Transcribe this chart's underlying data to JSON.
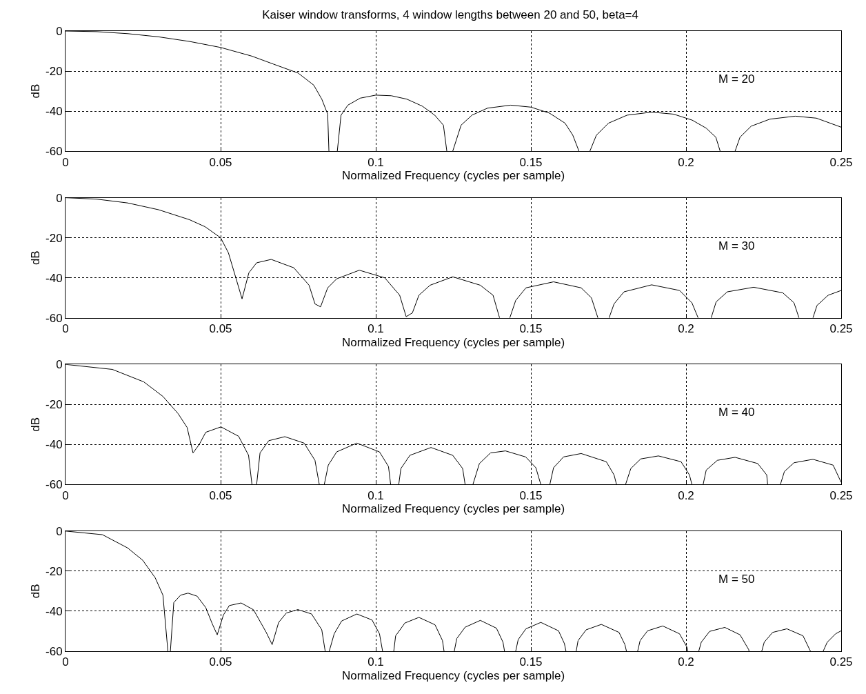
{
  "chart_data": [
    {
      "type": "line",
      "title": "Kaiser window transforms, 4 window lengths between 20 and 50, beta=4",
      "xlabel": "Normalized Frequency (cycles per sample)",
      "ylabel": "dB",
      "xlim": [
        0,
        0.25
      ],
      "xticks": [
        0,
        0.05,
        0.1,
        0.15,
        0.2,
        0.25
      ],
      "ylim": [
        -60,
        0
      ],
      "yticks": [
        -60,
        -40,
        -20,
        0
      ],
      "grid": true,
      "annotations": [
        "M = 20"
      ],
      "series": [
        {
          "color": "#000000",
          "x": [
            0,
            0.01,
            0.02,
            0.03,
            0.04,
            0.05,
            0.06,
            0.067,
            0.075,
            0.08,
            0.0826,
            0.0845,
            0.0849,
            0.086,
            0.0876,
            0.0888,
            0.091,
            0.095,
            0.1,
            0.105,
            0.11,
            0.115,
            0.119,
            0.1218,
            0.1229,
            0.124,
            0.1248,
            0.1275,
            0.131,
            0.136,
            0.1435,
            0.15,
            0.156,
            0.161,
            0.1635,
            0.1655,
            0.167,
            0.169,
            0.1711,
            0.175,
            0.181,
            0.1889,
            0.196,
            0.202,
            0.2065,
            0.2096,
            0.211,
            0.213,
            0.2158,
            0.2174,
            0.221,
            0.227,
            0.2352,
            0.242,
            0.25
          ],
          "values": [
            0,
            -0.3,
            -1.3,
            -2.9,
            -5.2,
            -8.2,
            -12.5,
            -16.5,
            -21,
            -27,
            -34,
            -41.5,
            -60,
            null,
            -60,
            -42,
            -37,
            -33.5,
            -32,
            -32.3,
            -34,
            -37.5,
            -42,
            -47,
            -60,
            null,
            -60,
            -47,
            -42,
            -38.5,
            -37,
            -38,
            -41,
            -46,
            -52,
            -60,
            null,
            -60,
            -52,
            -46,
            -42,
            -40.5,
            -41.5,
            -44.5,
            -48.5,
            -53,
            -60,
            null,
            -60,
            -53,
            -47.5,
            -44,
            -42.5,
            -43.5,
            -48
          ]
        }
      ]
    },
    {
      "type": "line",
      "xlabel": "Normalized Frequency (cycles per sample)",
      "ylabel": "dB",
      "xlim": [
        0,
        0.25
      ],
      "xticks": [
        0,
        0.05,
        0.1,
        0.15,
        0.2,
        0.25
      ],
      "ylim": [
        -60,
        0
      ],
      "yticks": [
        -60,
        -40,
        -20,
        0
      ],
      "grid": true,
      "annotations": [
        "M = 30"
      ],
      "series": [
        {
          "color": "#000000",
          "x": [
            0,
            0.01,
            0.02,
            0.03,
            0.04,
            0.045,
            0.05,
            0.0525,
            0.0549,
            0.0569,
            0.0591,
            0.0616,
            0.0663,
            0.0736,
            0.0785,
            0.0804,
            0.0822,
            0.0845,
            0.0874,
            0.0947,
            0.1029,
            0.1077,
            0.1098,
            0.1118,
            0.1139,
            0.1175,
            0.1248,
            0.1337,
            0.1378,
            0.1399,
            0.1415,
            0.1432,
            0.1451,
            0.1484,
            0.1573,
            0.1662,
            0.1695,
            0.1716,
            0.173,
            0.1752,
            0.1768,
            0.18,
            0.1889,
            0.1979,
            0.2019,
            0.2039,
            0.206,
            0.2081,
            0.2097,
            0.2133,
            0.2218,
            0.2312,
            0.2348,
            0.2364,
            0.238,
            0.2409,
            0.2422,
            0.2458,
            0.25
          ],
          "values": [
            0,
            -0.7,
            -2.6,
            -6,
            -11,
            -14.5,
            -20,
            -27.5,
            -40,
            -50.5,
            -37.5,
            -32.5,
            -30.8,
            -35,
            -43.7,
            -53,
            -54.5,
            -45,
            -40.5,
            -36.2,
            -40,
            -48.7,
            -59.4,
            -57.5,
            -48.7,
            -43.7,
            -39.5,
            -43.7,
            -48.7,
            -60,
            null,
            -60,
            -51.3,
            -45,
            -42,
            -45,
            -50,
            -60,
            null,
            -60,
            -53,
            -47,
            -43.5,
            -46.3,
            -52.5,
            -60,
            null,
            -60,
            -52,
            -47,
            -44.7,
            -47.5,
            -52.5,
            -60,
            null,
            -60,
            -53.8,
            -48.7,
            -46.3
          ]
        }
      ]
    },
    {
      "type": "line",
      "xlabel": "Normalized Frequency (cycles per sample)",
      "ylabel": "dB",
      "xlim": [
        0,
        0.25
      ],
      "xticks": [
        0,
        0.05,
        0.1,
        0.15,
        0.2,
        0.25
      ],
      "ylim": [
        -60,
        0
      ],
      "yticks": [
        -60,
        -40,
        -20,
        0
      ],
      "grid": true,
      "annotations": [
        "M = 40"
      ],
      "series": [
        {
          "color": "#000000",
          "x": [
            0,
            0.0151,
            0.0252,
            0.0314,
            0.0363,
            0.0392,
            0.0411,
            0.0431,
            0.0452,
            0.0501,
            0.0558,
            0.059,
            0.0601,
            0.061,
            0.0616,
            0.0627,
            0.0655,
            0.0707,
            0.0769,
            0.0804,
            0.0818,
            0.0826,
            0.0834,
            0.0847,
            0.0874,
            0.0939,
            0.1012,
            0.1041,
            0.1048,
            0.106,
            0.1074,
            0.1081,
            0.111,
            0.1178,
            0.1248,
            0.128,
            0.1288,
            0.13,
            0.1313,
            0.1334,
            0.137,
            0.1418,
            0.1483,
            0.1516,
            0.1532,
            0.155,
            0.1561,
            0.1573,
            0.1605,
            0.1662,
            0.1743,
            0.1768,
            0.1776,
            0.179,
            0.1805,
            0.1822,
            0.1854,
            0.1911,
            0.1984,
            0.2011,
            0.2019,
            0.204,
            0.2055,
            0.2065,
            0.2101,
            0.2158,
            0.2231,
            0.226,
            0.2263,
            0.228,
            0.2304,
            0.2317,
            0.2348,
            0.2409,
            0.2474,
            0.25
          ],
          "values": [
            0,
            -2.5,
            -8.7,
            -16,
            -24.6,
            -31.5,
            -44.2,
            -40,
            -33.9,
            -31.2,
            -35.9,
            -45.4,
            -60,
            null,
            -60,
            -44.2,
            -38.1,
            -36.1,
            -39.3,
            -47.9,
            -60,
            null,
            -60,
            -50.3,
            -43.7,
            -39.3,
            -43.7,
            -51,
            -60,
            null,
            -60,
            -52,
            -45.4,
            -41.5,
            -45.4,
            -52,
            -60,
            null,
            -60,
            -49.5,
            -44.2,
            -43.2,
            -46.2,
            -51.6,
            -60,
            null,
            -60,
            -51.6,
            -46.2,
            -44.5,
            -48.6,
            -55.2,
            -60,
            null,
            -60,
            -52,
            -47.2,
            -45.7,
            -48.6,
            -55.2,
            -60,
            null,
            -60,
            -52.8,
            -47.9,
            -46.4,
            -49.5,
            -55.2,
            -60,
            null,
            -60,
            -53.5,
            -49.1,
            -47.4,
            -50.3,
            -58.9
          ]
        }
      ]
    },
    {
      "type": "line",
      "xlabel": "Normalized Frequency (cycles per sample)",
      "ylabel": "dB",
      "xlim": [
        0,
        0.25
      ],
      "xticks": [
        0,
        0.05,
        0.1,
        0.15,
        0.2,
        0.25
      ],
      "ylim": [
        -60,
        0
      ],
      "yticks": [
        -60,
        -40,
        -20,
        0
      ],
      "grid": true,
      "annotations": [
        "M = 50"
      ],
      "series": [
        {
          "color": "#000000",
          "x": [
            0,
            0.0119,
            0.02,
            0.0249,
            0.0289,
            0.0314,
            0.033,
            0.0334,
            0.0338,
            0.0349,
            0.0371,
            0.0395,
            0.0424,
            0.0452,
            0.0473,
            0.0489,
            0.0509,
            0.0528,
            0.0566,
            0.0606,
            0.0647,
            0.0666,
            0.0687,
            0.0712,
            0.0749,
            0.0793,
            0.0826,
            0.0837,
            0.0843,
            0.085,
            0.0866,
            0.089,
            0.0939,
            0.0988,
            0.1012,
            0.1022,
            0.104,
            0.1058,
            0.1064,
            0.1094,
            0.1139,
            0.1191,
            0.1215,
            0.122,
            0.1235,
            0.1253,
            0.1261,
            0.1288,
            0.1337,
            0.1389,
            0.141,
            0.1415,
            0.143,
            0.1451,
            0.1459,
            0.1484,
            0.1532,
            0.1589,
            0.1608,
            0.1613,
            0.163,
            0.1646,
            0.1652,
            0.1678,
            0.1727,
            0.1784,
            0.1803,
            0.1808,
            0.1825,
            0.1844,
            0.1852,
            0.1876,
            0.1925,
            0.1979,
            0.2003,
            0.2006,
            0.2025,
            0.2041,
            0.2049,
            0.2076,
            0.2125,
            0.2174,
            0.2202,
            0.2203,
            0.222,
            0.2244,
            0.2252,
            0.2279,
            0.2325,
            0.2377,
            0.2401,
            0.242,
            0.2442,
            0.2455,
            0.2482,
            0.25
          ],
          "values": [
            0,
            -1.8,
            -8.4,
            -14.6,
            -23.3,
            -32,
            -60,
            null,
            -60,
            -35.7,
            -32,
            -31,
            -32.5,
            -38.2,
            -46.3,
            -51.8,
            -41.9,
            -37.2,
            -35.9,
            -39.3,
            -50.6,
            -56.7,
            -45.6,
            -40.9,
            -39.2,
            -41.4,
            -49.3,
            -60,
            null,
            -60,
            -51.3,
            -44.9,
            -41.4,
            -44.4,
            -51.3,
            -60,
            null,
            -60,
            -52.3,
            -45.9,
            -43.1,
            -46.8,
            -54.7,
            -60,
            null,
            -60,
            -53.7,
            -48,
            -44.6,
            -48.5,
            -55.5,
            -60,
            null,
            -60,
            -54.2,
            -48.8,
            -45.6,
            -49.8,
            -56.2,
            -60,
            null,
            -60,
            -54.7,
            -49.3,
            -46.6,
            -50.6,
            -56.7,
            -60,
            null,
            -60,
            -54.7,
            -49.8,
            -47.4,
            -51.3,
            -58,
            -60,
            null,
            -60,
            -55.5,
            -50.1,
            -48.1,
            -51.8,
            -59.2,
            -60,
            null,
            -60,
            -55.5,
            -50.6,
            -48.8,
            -52.3,
            -60,
            null,
            -60,
            -55.5,
            -51.3,
            -49.8
          ]
        }
      ]
    }
  ]
}
